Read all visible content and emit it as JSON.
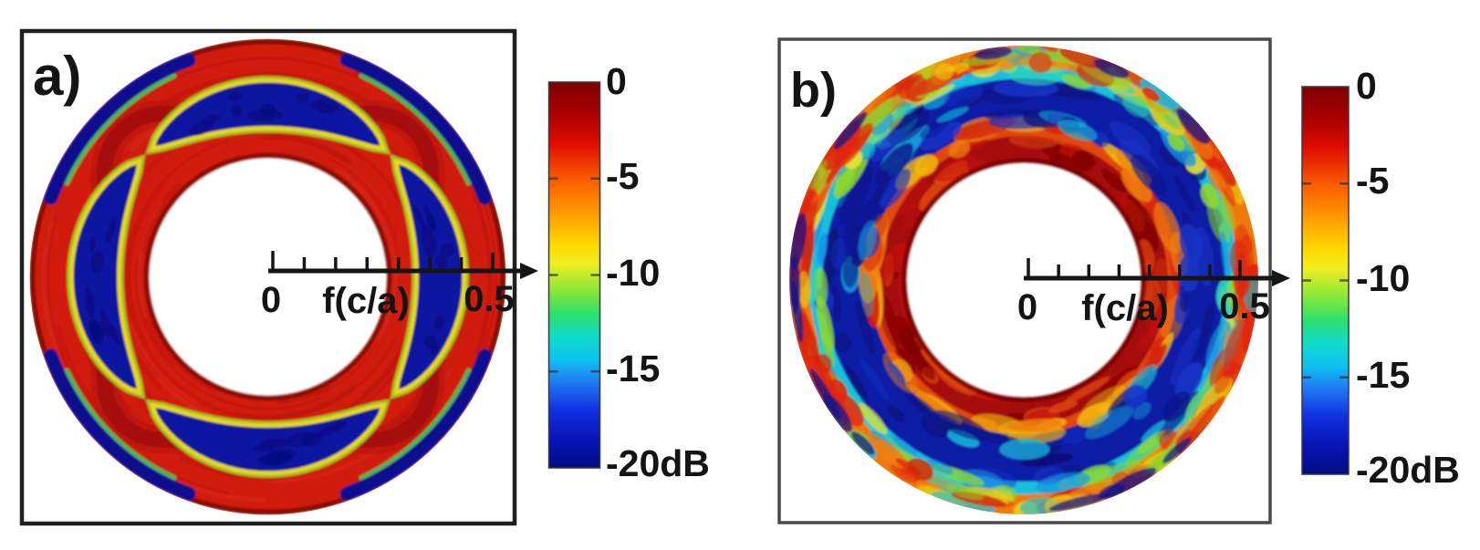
{
  "figure": {
    "background_color": "#ffffff",
    "panels_count": 2
  },
  "chart_data": [
    {
      "panel": "a",
      "label": "a)",
      "type": "heatmap",
      "projection": "polar-annulus",
      "quantity": "transmission level (dB)",
      "radial_axis": {
        "label": "f(c/a)",
        "min": 0,
        "max": 0.5,
        "min_label": "0",
        "max_label": "0.5",
        "tick_count": 8
      },
      "colorbar": {
        "colormap": "jet",
        "max_db": 0,
        "min_db": -20,
        "tick_values_db": [
          0,
          -5,
          -10,
          -15,
          -20
        ],
        "tick_labels": [
          "0",
          "-5",
          "-10",
          "-15",
          "-20dB"
        ]
      },
      "annulus": {
        "inner_radius_frac": 0.5,
        "outer_radius_frac": 1.0
      },
      "base_db": 0,
      "base_color": "#d11c0e",
      "rim_color": "#7a0303",
      "inner_edge_color": "#7e0303",
      "features": [
        {
          "kind": "stop-band-lens",
          "db": -20,
          "color": "#0c14a0",
          "fringe_color": "#e8d81e",
          "fringe2_color": "#8fe02a",
          "azimuths_deg": [
            0,
            90,
            180,
            270
          ],
          "radial_center_frac": 0.725,
          "radial_halfwidth_frac": 0.1,
          "angular_halfwidth_deg": 42
        },
        {
          "kind": "outer-rim-arc",
          "db": -20,
          "color": "#0a1190",
          "fringe_color": "#38d065",
          "azimuths_deg": [
            45,
            135,
            225,
            315
          ],
          "angular_halfwidth_deg": 25
        },
        {
          "kind": "dark-band-rounded-square",
          "db": -3,
          "color": "#a30b0b",
          "corner_azimuths_deg": [
            45,
            135,
            225,
            315
          ],
          "radial_frac_at_side": 0.685
        }
      ]
    },
    {
      "panel": "b",
      "label": "b)",
      "type": "heatmap",
      "projection": "polar-annulus",
      "quantity": "transmission level (dB)",
      "radial_axis": {
        "label": "f(c/a)",
        "min": 0,
        "max": 0.5,
        "min_label": "0",
        "max_label": "0.5",
        "tick_count": 8
      },
      "colorbar": {
        "colormap": "jet",
        "max_db": 0,
        "min_db": -20,
        "tick_values_db": [
          0,
          -5,
          -10,
          -15,
          -20
        ],
        "tick_labels": [
          "0",
          "-5",
          "-10",
          "-15",
          "-20dB"
        ]
      },
      "annulus": {
        "inner_radius_frac": 0.5,
        "outer_radius_frac": 1.0
      },
      "inner_edge_color": "#7d0404",
      "rings": [
        {
          "name": "inner-passband",
          "db": 0,
          "radial_frac": [
            0.5,
            0.64
          ],
          "color": "#a50808",
          "noise_colors": [
            "#c41208",
            "#7e0404",
            "#e0480c"
          ],
          "noise_density": 55
        },
        {
          "name": "inner-band-edge",
          "db": -4,
          "radial_frac": [
            0.62,
            0.675
          ],
          "color": "#e04a0d",
          "noise_colors": [
            "#d42008",
            "#f0800c",
            "#f2b90f"
          ],
          "noise_density": 45
        },
        {
          "name": "stop-band",
          "db": -20,
          "radial_frac": [
            0.665,
            0.875
          ],
          "color": "#0c1ca4",
          "noise_colors": [
            "#081488",
            "#1834c8",
            "#15b4dc",
            "#0a1078"
          ],
          "noise_density": 95
        },
        {
          "name": "transition",
          "db": -12,
          "radial_frac": [
            0.865,
            0.93
          ],
          "color": "#17c0da",
          "noise_colors": [
            "#2fd8b8",
            "#90d82b",
            "#1594e4",
            "#e8e430"
          ],
          "noise_density": 80
        },
        {
          "name": "outer-passband",
          "db": -4,
          "radial_frac": [
            0.92,
            1.0
          ],
          "color": "#ee7a0e",
          "noise_colors": [
            "#e33109",
            "#f2cf12",
            "#f0800c",
            "#8fd32b",
            "#18c0e0",
            "#d42008"
          ],
          "noise_density": 185,
          "angular_color_bias": {
            "color": "#e02508",
            "azimuths_deg": [
              0,
              180
            ],
            "halfwidth_deg": 38,
            "strength": 0.65
          }
        }
      ],
      "rim_flecks": {
        "color": "#0a1190",
        "count": 14
      }
    }
  ]
}
